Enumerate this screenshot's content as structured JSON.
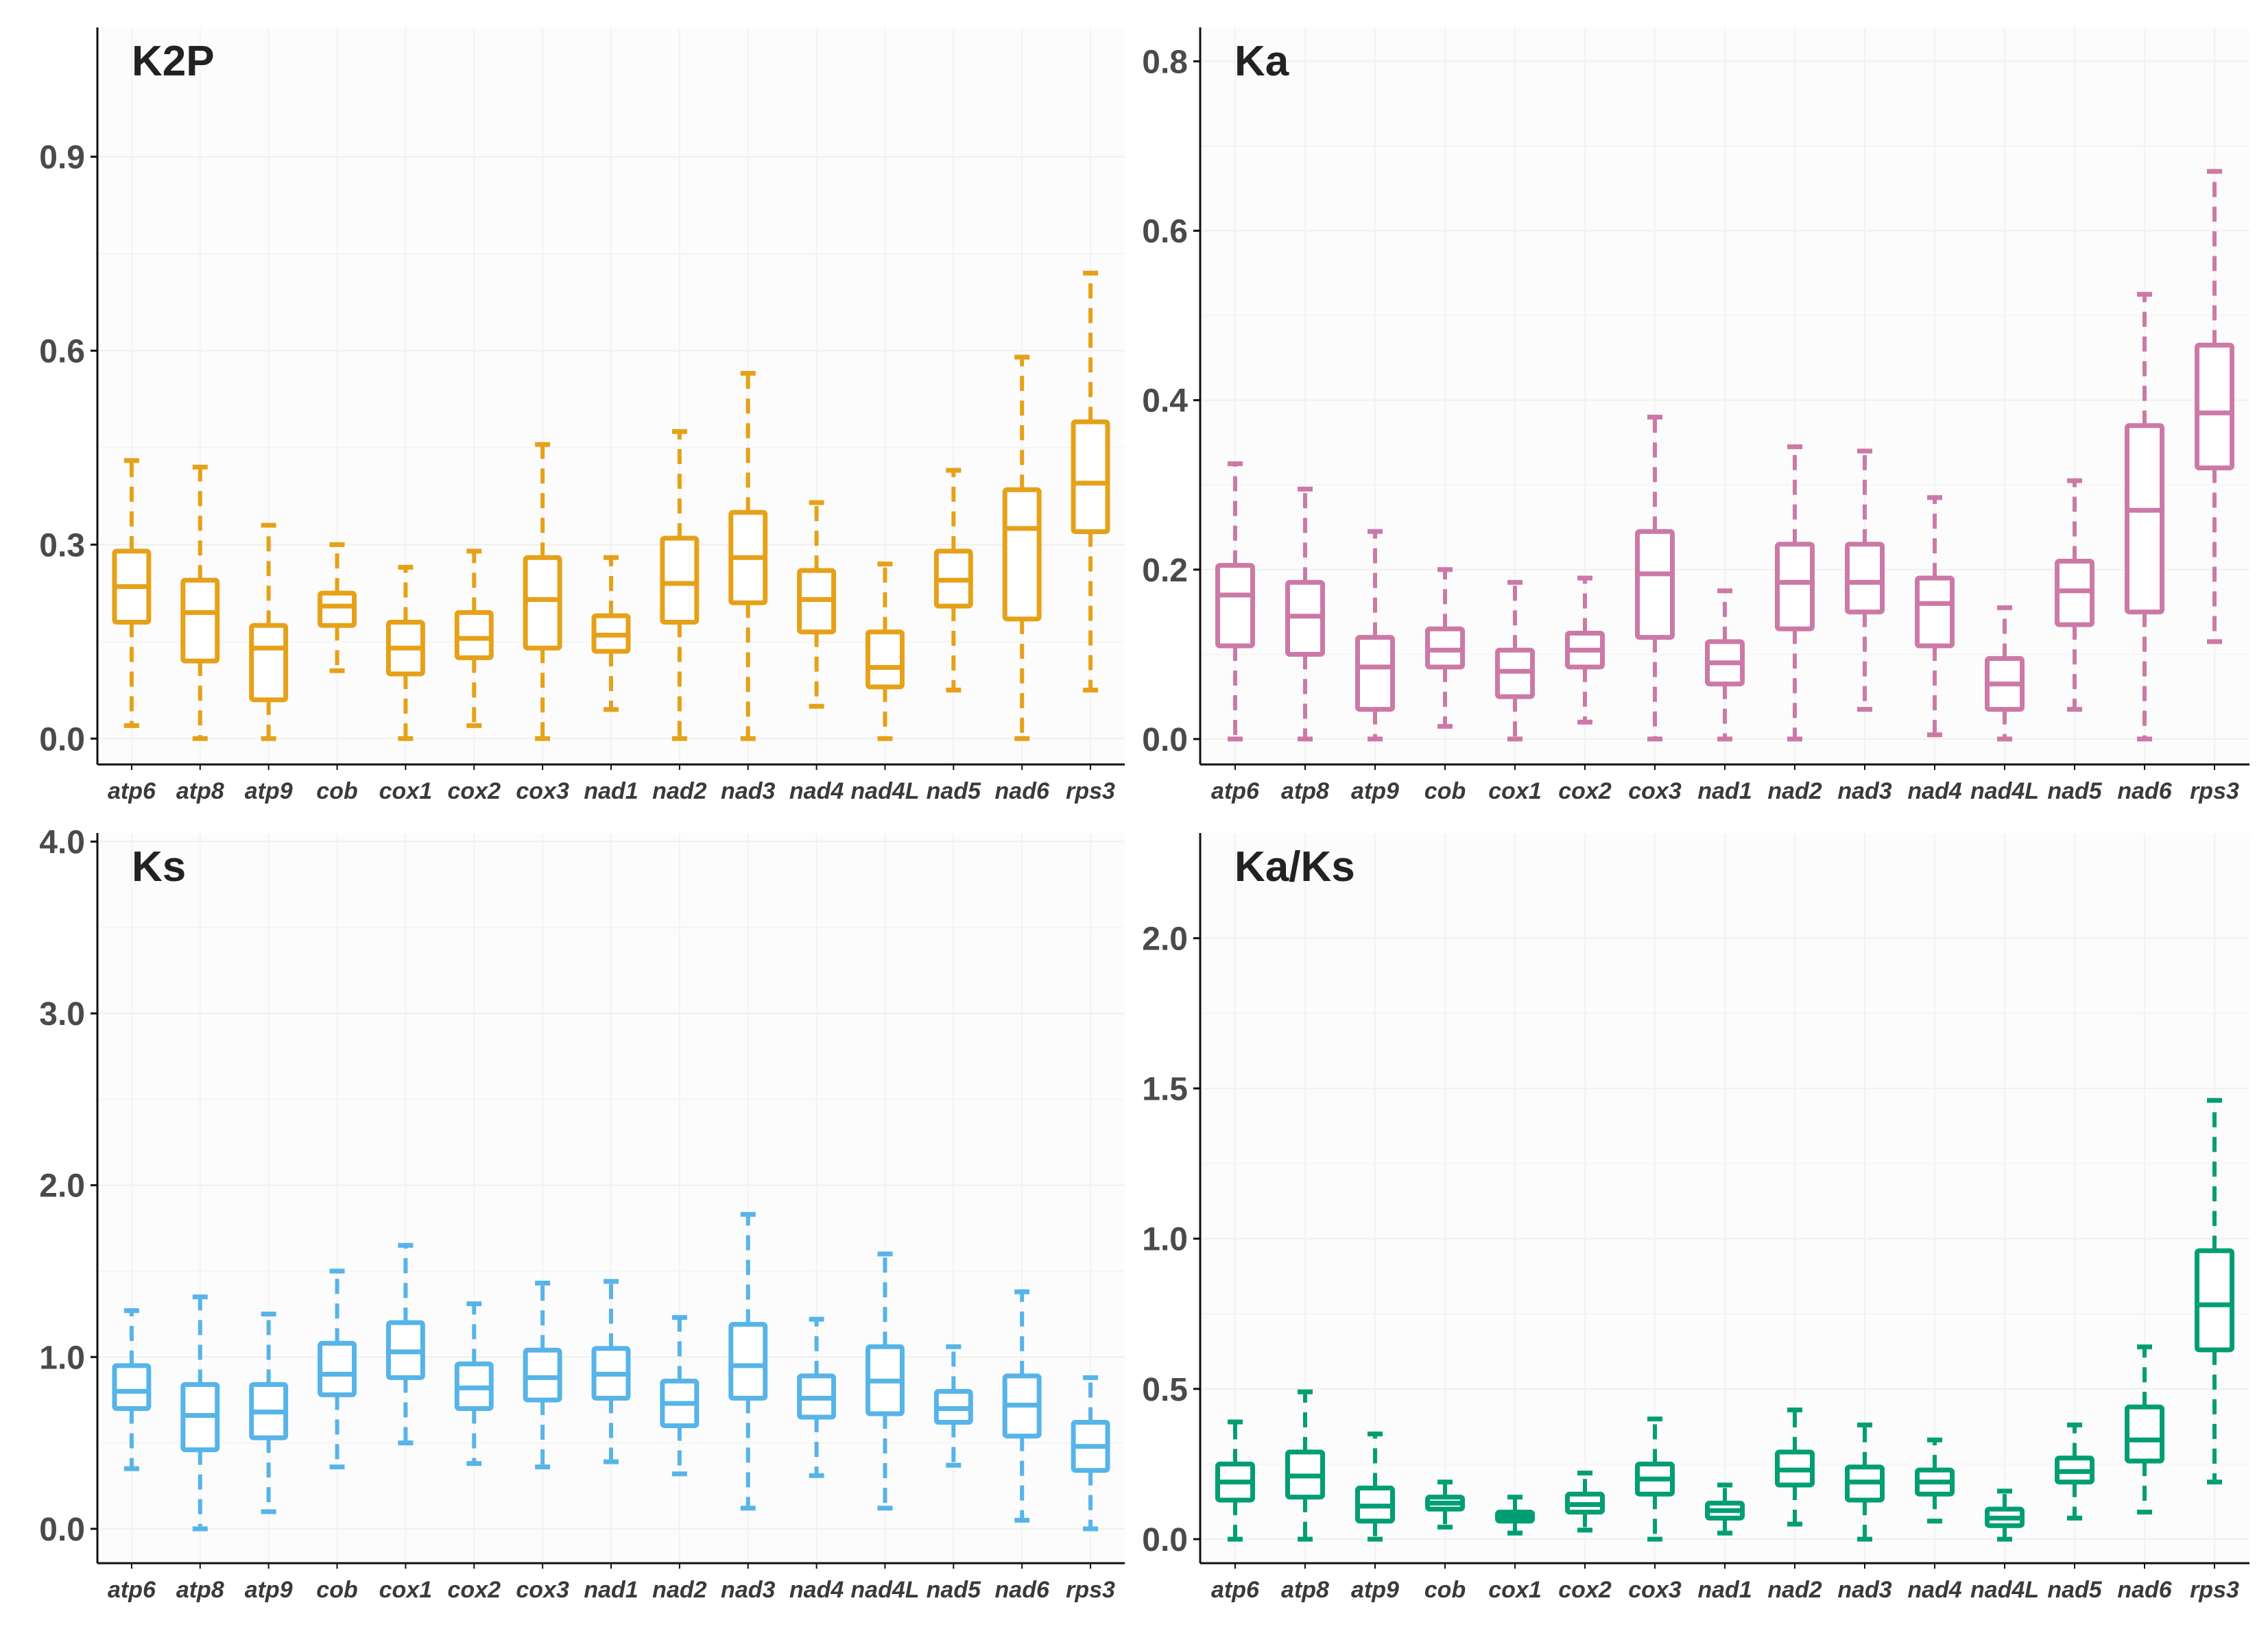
{
  "figure": {
    "description_free": true
  },
  "chart_data": [
    {
      "type": "box",
      "title": "K2P",
      "color": "#E6A118",
      "ylim": [
        -0.04,
        1.1
      ],
      "yticks": [
        0.0,
        0.3,
        0.6,
        0.9
      ],
      "ytick_labels": [
        "0.0",
        "0.3",
        "0.6",
        "0.9"
      ],
      "categories": [
        "atp6",
        "atp8",
        "atp9",
        "cob",
        "cox1",
        "cox2",
        "cox3",
        "nad1",
        "nad2",
        "nad3",
        "nad4",
        "nad4L",
        "nad5",
        "nad6",
        "rps3"
      ],
      "boxes": [
        {
          "min": 0.02,
          "q1": 0.18,
          "median": 0.235,
          "q3": 0.29,
          "max": 0.43
        },
        {
          "min": 0.0,
          "q1": 0.12,
          "median": 0.195,
          "q3": 0.245,
          "max": 0.42
        },
        {
          "min": 0.0,
          "q1": 0.06,
          "median": 0.14,
          "q3": 0.175,
          "max": 0.33
        },
        {
          "min": 0.105,
          "q1": 0.175,
          "median": 0.205,
          "q3": 0.225,
          "max": 0.3
        },
        {
          "min": 0.0,
          "q1": 0.1,
          "median": 0.14,
          "q3": 0.18,
          "max": 0.265
        },
        {
          "min": 0.02,
          "q1": 0.125,
          "median": 0.155,
          "q3": 0.195,
          "max": 0.29
        },
        {
          "min": 0.0,
          "q1": 0.14,
          "median": 0.215,
          "q3": 0.28,
          "max": 0.455
        },
        {
          "min": 0.045,
          "q1": 0.135,
          "median": 0.16,
          "q3": 0.19,
          "max": 0.28
        },
        {
          "min": 0.0,
          "q1": 0.18,
          "median": 0.24,
          "q3": 0.31,
          "max": 0.475
        },
        {
          "min": 0.0,
          "q1": 0.21,
          "median": 0.28,
          "q3": 0.35,
          "max": 0.565
        },
        {
          "min": 0.05,
          "q1": 0.165,
          "median": 0.215,
          "q3": 0.26,
          "max": 0.365
        },
        {
          "min": 0.0,
          "q1": 0.08,
          "median": 0.11,
          "q3": 0.165,
          "max": 0.27
        },
        {
          "min": 0.075,
          "q1": 0.205,
          "median": 0.245,
          "q3": 0.29,
          "max": 0.415
        },
        {
          "min": 0.0,
          "q1": 0.185,
          "median": 0.325,
          "q3": 0.385,
          "max": 0.59
        },
        {
          "min": 0.075,
          "q1": 0.32,
          "median": 0.395,
          "q3": 0.49,
          "max": 0.72
        }
      ]
    },
    {
      "type": "box",
      "title": "Ka",
      "color": "#CC79A7",
      "ylim": [
        -0.03,
        0.84
      ],
      "yticks": [
        0.0,
        0.2,
        0.4,
        0.6,
        0.8
      ],
      "ytick_labels": [
        "0.0",
        "0.2",
        "0.4",
        "0.6",
        "0.8"
      ],
      "categories": [
        "atp6",
        "atp8",
        "atp9",
        "cob",
        "cox1",
        "cox2",
        "cox3",
        "nad1",
        "nad2",
        "nad3",
        "nad4",
        "nad4L",
        "nad5",
        "nad6",
        "rps3"
      ],
      "boxes": [
        {
          "min": 0.0,
          "q1": 0.11,
          "median": 0.17,
          "q3": 0.205,
          "max": 0.325
        },
        {
          "min": 0.0,
          "q1": 0.1,
          "median": 0.145,
          "q3": 0.185,
          "max": 0.295
        },
        {
          "min": 0.0,
          "q1": 0.035,
          "median": 0.085,
          "q3": 0.12,
          "max": 0.245
        },
        {
          "min": 0.015,
          "q1": 0.085,
          "median": 0.105,
          "q3": 0.13,
          "max": 0.2
        },
        {
          "min": 0.0,
          "q1": 0.05,
          "median": 0.08,
          "q3": 0.105,
          "max": 0.185
        },
        {
          "min": 0.02,
          "q1": 0.085,
          "median": 0.105,
          "q3": 0.125,
          "max": 0.19
        },
        {
          "min": 0.0,
          "q1": 0.12,
          "median": 0.195,
          "q3": 0.245,
          "max": 0.38
        },
        {
          "min": 0.0,
          "q1": 0.065,
          "median": 0.09,
          "q3": 0.115,
          "max": 0.175
        },
        {
          "min": 0.0,
          "q1": 0.13,
          "median": 0.185,
          "q3": 0.23,
          "max": 0.345
        },
        {
          "min": 0.035,
          "q1": 0.15,
          "median": 0.185,
          "q3": 0.23,
          "max": 0.34
        },
        {
          "min": 0.005,
          "q1": 0.11,
          "median": 0.16,
          "q3": 0.19,
          "max": 0.285
        },
        {
          "min": 0.0,
          "q1": 0.035,
          "median": 0.065,
          "q3": 0.095,
          "max": 0.155
        },
        {
          "min": 0.035,
          "q1": 0.135,
          "median": 0.175,
          "q3": 0.21,
          "max": 0.305
        },
        {
          "min": 0.0,
          "q1": 0.15,
          "median": 0.27,
          "q3": 0.37,
          "max": 0.525
        },
        {
          "min": 0.115,
          "q1": 0.32,
          "median": 0.385,
          "q3": 0.465,
          "max": 0.67
        }
      ]
    },
    {
      "type": "box",
      "title": "Ks",
      "color": "#56B4E9",
      "ylim": [
        -0.2,
        4.05
      ],
      "yticks": [
        0.0,
        1.0,
        2.0,
        3.0,
        4.0
      ],
      "ytick_labels": [
        "0.0",
        "1.0",
        "2.0",
        "3.0",
        "4.0"
      ],
      "categories": [
        "atp6",
        "atp8",
        "atp9",
        "cob",
        "cox1",
        "cox2",
        "cox3",
        "nad1",
        "nad2",
        "nad3",
        "nad4",
        "nad4L",
        "nad5",
        "nad6",
        "rps3"
      ],
      "boxes": [
        {
          "min": 0.35,
          "q1": 0.7,
          "median": 0.8,
          "q3": 0.95,
          "max": 1.27
        },
        {
          "min": 0.0,
          "q1": 0.46,
          "median": 0.66,
          "q3": 0.84,
          "max": 1.35
        },
        {
          "min": 0.1,
          "q1": 0.53,
          "median": 0.68,
          "q3": 0.84,
          "max": 1.25
        },
        {
          "min": 0.36,
          "q1": 0.78,
          "median": 0.9,
          "q3": 1.08,
          "max": 1.5
        },
        {
          "min": 0.5,
          "q1": 0.88,
          "median": 1.03,
          "q3": 1.2,
          "max": 1.65
        },
        {
          "min": 0.38,
          "q1": 0.7,
          "median": 0.82,
          "q3": 0.96,
          "max": 1.31
        },
        {
          "min": 0.36,
          "q1": 0.75,
          "median": 0.88,
          "q3": 1.04,
          "max": 1.43
        },
        {
          "min": 0.39,
          "q1": 0.76,
          "median": 0.9,
          "q3": 1.05,
          "max": 1.44
        },
        {
          "min": 0.32,
          "q1": 0.6,
          "median": 0.73,
          "q3": 0.86,
          "max": 1.23
        },
        {
          "min": 0.12,
          "q1": 0.76,
          "median": 0.95,
          "q3": 1.19,
          "max": 1.83
        },
        {
          "min": 0.31,
          "q1": 0.65,
          "median": 0.76,
          "q3": 0.89,
          "max": 1.22
        },
        {
          "min": 0.12,
          "q1": 0.67,
          "median": 0.86,
          "q3": 1.06,
          "max": 1.6
        },
        {
          "min": 0.37,
          "q1": 0.62,
          "median": 0.7,
          "q3": 0.8,
          "max": 1.06
        },
        {
          "min": 0.05,
          "q1": 0.54,
          "median": 0.72,
          "q3": 0.89,
          "max": 1.38
        },
        {
          "min": 0.0,
          "q1": 0.34,
          "median": 0.48,
          "q3": 0.62,
          "max": 0.88
        }
      ]
    },
    {
      "type": "box",
      "title": "Ka/Ks",
      "color": "#009E73",
      "ylim": [
        -0.08,
        2.35
      ],
      "yticks": [
        0.0,
        0.5,
        1.0,
        1.5,
        2.0
      ],
      "ytick_labels": [
        "0.0",
        "0.5",
        "1.0",
        "1.5",
        "2.0"
      ],
      "categories": [
        "atp6",
        "atp8",
        "atp9",
        "cob",
        "cox1",
        "cox2",
        "cox3",
        "nad1",
        "nad2",
        "nad3",
        "nad4",
        "nad4L",
        "nad5",
        "nad6",
        "rps3"
      ],
      "boxes": [
        {
          "min": 0.0,
          "q1": 0.13,
          "median": 0.19,
          "q3": 0.25,
          "max": 0.39
        },
        {
          "min": 0.0,
          "q1": 0.14,
          "median": 0.21,
          "q3": 0.29,
          "max": 0.49
        },
        {
          "min": 0.0,
          "q1": 0.06,
          "median": 0.11,
          "q3": 0.17,
          "max": 0.35
        },
        {
          "min": 0.04,
          "q1": 0.1,
          "median": 0.12,
          "q3": 0.14,
          "max": 0.19
        },
        {
          "min": 0.02,
          "q1": 0.06,
          "median": 0.075,
          "q3": 0.09,
          "max": 0.14
        },
        {
          "min": 0.03,
          "q1": 0.09,
          "median": 0.115,
          "q3": 0.15,
          "max": 0.22
        },
        {
          "min": 0.0,
          "q1": 0.15,
          "median": 0.2,
          "q3": 0.25,
          "max": 0.4
        },
        {
          "min": 0.02,
          "q1": 0.07,
          "median": 0.095,
          "q3": 0.12,
          "max": 0.18
        },
        {
          "min": 0.05,
          "q1": 0.18,
          "median": 0.23,
          "q3": 0.29,
          "max": 0.43
        },
        {
          "min": 0.0,
          "q1": 0.13,
          "median": 0.19,
          "q3": 0.24,
          "max": 0.38
        },
        {
          "min": 0.06,
          "q1": 0.15,
          "median": 0.19,
          "q3": 0.23,
          "max": 0.33
        },
        {
          "min": 0.0,
          "q1": 0.045,
          "median": 0.07,
          "q3": 0.1,
          "max": 0.16
        },
        {
          "min": 0.07,
          "q1": 0.19,
          "median": 0.225,
          "q3": 0.27,
          "max": 0.38
        },
        {
          "min": 0.09,
          "q1": 0.26,
          "median": 0.33,
          "q3": 0.44,
          "max": 0.64
        },
        {
          "min": 0.19,
          "q1": 0.63,
          "median": 0.78,
          "q3": 0.96,
          "max": 1.46
        }
      ]
    }
  ]
}
